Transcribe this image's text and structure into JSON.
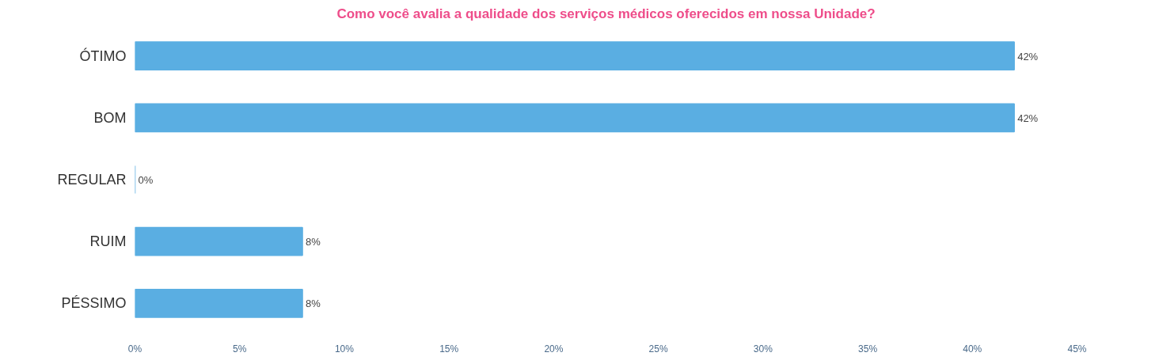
{
  "chart_data": {
    "type": "bar",
    "orientation": "horizontal",
    "title": "Como você avalia a qualidade dos serviços médicos oferecidos em nossa Unidade?",
    "categories": [
      "ÓTIMO",
      "BOM",
      "REGULAR",
      "RUIM",
      "PÉSSIMO"
    ],
    "values": [
      42,
      42,
      0,
      8,
      8
    ],
    "value_labels": [
      "42%",
      "42%",
      "0%",
      "8%",
      "8%"
    ],
    "color": "#5aaee2",
    "xlim": [
      0,
      45
    ],
    "xticks": [
      {
        "value": 0,
        "label": "0%"
      },
      {
        "value": 5,
        "label": "5%"
      },
      {
        "value": 10,
        "label": "10%"
      },
      {
        "value": 15,
        "label": "15%"
      },
      {
        "value": 20,
        "label": "20%"
      },
      {
        "value": 25,
        "label": "25%"
      },
      {
        "value": 30,
        "label": "30%"
      },
      {
        "value": 35,
        "label": "35%"
      },
      {
        "value": 40,
        "label": "40%"
      },
      {
        "value": 45,
        "label": "45%"
      }
    ],
    "grid": false
  }
}
